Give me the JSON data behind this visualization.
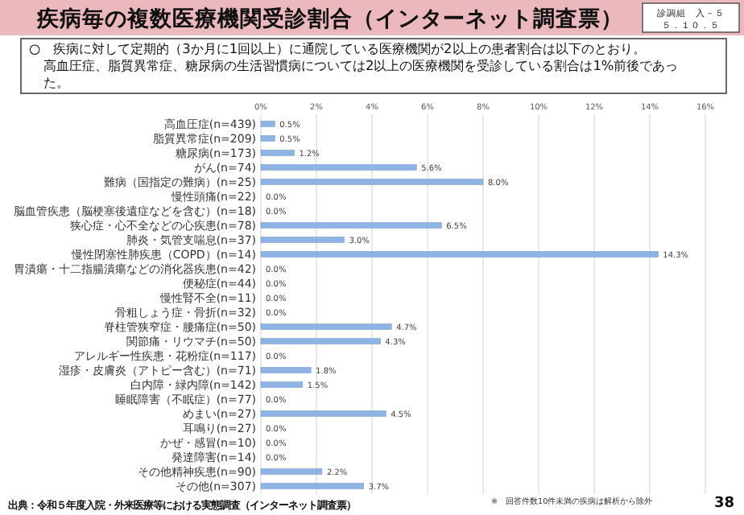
{
  "chart_data": {
    "type": "bar",
    "orientation": "horizontal",
    "title": "疾病毎の複数医療機関受診割合（インターネット調査票）",
    "subtitle": "○　疾病に対して定期的（3か月に1回以上）に通院している医療機関が2以上の患者割合は以下のとおり。高血圧症、脂質異常症、糖尿病の生活習慣病については2以上の医療機関を受診している割合は1%前後であった。",
    "categories": [
      "高血圧症(n=439)",
      "脂質異常症(n=209)",
      "糖尿病(n=173)",
      "がん(n=74)",
      "難病（国指定の難病）(n=25)",
      "慢性頭痛(n=22)",
      "脳血管疾患（脳梗塞後遺症などを含む）(n=18)",
      "狭心症・心不全などの心疾患(n=78)",
      "肺炎・気管支喘息(n=37)",
      "慢性閉塞性肺疾患（COPD）(n=14)",
      "胃潰瘍・十二指腸潰瘍などの消化器疾患(n=42)",
      "便秘症(n=44)",
      "慢性腎不全(n=11)",
      "骨粗しょう症・骨折(n=32)",
      "脊柱管狭窄症・腰痛症(n=50)",
      "関節痛・リウマチ(n=50)",
      "アレルギー性疾患・花粉症(n=117)",
      "湿疹・皮膚炎（アトピー含む）(n=71)",
      "白内障・緑内障(n=142)",
      "睡眠障害（不眠症）(n=77)",
      "めまい(n=27)",
      "耳鳴り(n=27)",
      "かぜ・感冒(n=10)",
      "発達障害(n=14)",
      "その他精神疾患(n=90)",
      "その他(n=307)"
    ],
    "values": [
      0.5,
      0.5,
      1.2,
      5.6,
      8.0,
      0,
      0,
      6.5,
      3.0,
      14.3,
      0,
      0,
      0,
      0,
      4.7,
      4.3,
      0,
      1.8,
      1.5,
      0,
      4.5,
      0,
      0,
      0,
      2.2,
      3.7
    ],
    "value_labels": [
      "0.5%",
      "0.5%",
      "1.2%",
      "5.6%",
      "8.0%",
      "0.0%",
      "0.0%",
      "6.5%",
      "3.0%",
      "14.3%",
      "0.0%",
      "0.0%",
      "0.0%",
      "0.0%",
      "4.7%",
      "4.3%",
      "0.0%",
      "1.8%",
      "1.5%",
      "0.0%",
      "4.5%",
      "0.0%",
      "0.0%",
      "0.0%",
      "2.2%",
      "3.7%"
    ],
    "color": "#8eb4e3",
    "xlim": [
      0,
      16
    ],
    "xticks": [
      {
        "value": 0,
        "label": "0%"
      },
      {
        "value": 2,
        "label": "2%"
      },
      {
        "value": 4,
        "label": "4%"
      },
      {
        "value": 6,
        "label": "6%"
      },
      {
        "value": 8,
        "label": "8%"
      },
      {
        "value": 10,
        "label": "10%"
      },
      {
        "value": 12,
        "label": "12%"
      },
      {
        "value": 14,
        "label": "14%"
      },
      {
        "value": 16,
        "label": "16%"
      }
    ],
    "grid": "x",
    "annotations": [
      "診調組　入－５",
      "５．１０．５",
      "出典：令和５年度入院・外来医療等における実態調査（インターネット調査票）",
      "※　回答件数10件未満の疾病は解析から除外",
      "38"
    ]
  }
}
